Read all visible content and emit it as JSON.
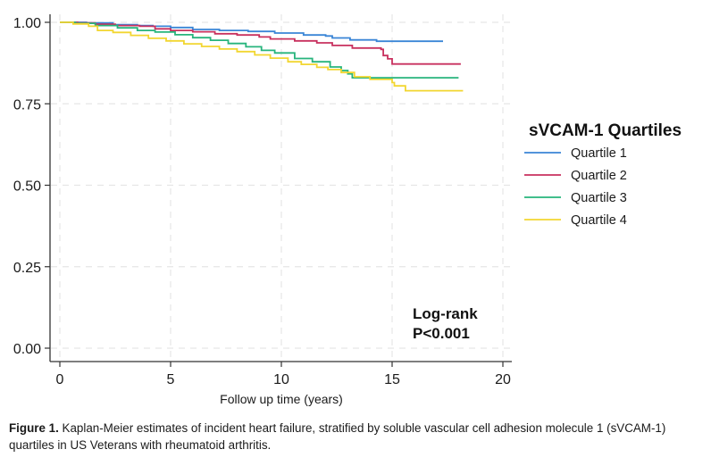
{
  "chart_data": {
    "type": "line",
    "subtype": "kaplan-meier step",
    "title": "",
    "xlabel": "Follow up time (years)",
    "ylabel": "",
    "xlim": [
      0,
      20
    ],
    "ylim": [
      0,
      1
    ],
    "x_ticks": [
      0,
      5,
      10,
      15,
      20
    ],
    "x_tick_labels": [
      "0",
      "5",
      "10",
      "15",
      "20"
    ],
    "y_ticks": [
      0,
      0.25,
      0.5,
      0.75,
      1.0
    ],
    "y_tick_labels": [
      "0.00",
      "0.25",
      "0.50",
      "0.75",
      "1.00"
    ],
    "grid": true,
    "legend": {
      "title": "sVCAM-1 Quartiles",
      "placement": "right"
    },
    "annotation": [
      "Log-rank",
      "P<0.001"
    ],
    "series": [
      {
        "name": "Quartile 1",
        "color": "#3a85d6",
        "points": [
          [
            0,
            1.0
          ],
          [
            1.2,
            0.998
          ],
          [
            2.4,
            0.993
          ],
          [
            3.5,
            0.99
          ],
          [
            4.2,
            0.988
          ],
          [
            5.0,
            0.984
          ],
          [
            6.0,
            0.978
          ],
          [
            7.2,
            0.975
          ],
          [
            8.5,
            0.972
          ],
          [
            9.7,
            0.967
          ],
          [
            11.0,
            0.961
          ],
          [
            12.0,
            0.958
          ],
          [
            12.3,
            0.952
          ],
          [
            13.1,
            0.946
          ],
          [
            14.3,
            0.942
          ],
          [
            17.3,
            0.942
          ]
        ]
      },
      {
        "name": "Quartile 2",
        "color": "#c8305e",
        "points": [
          [
            0,
            1.0
          ],
          [
            0.8,
            0.998
          ],
          [
            1.6,
            0.994
          ],
          [
            2.5,
            0.99
          ],
          [
            3.6,
            0.988
          ],
          [
            4.3,
            0.98
          ],
          [
            5.0,
            0.975
          ],
          [
            6.0,
            0.971
          ],
          [
            7.0,
            0.965
          ],
          [
            8.0,
            0.961
          ],
          [
            9.0,
            0.955
          ],
          [
            9.5,
            0.949
          ],
          [
            10.6,
            0.943
          ],
          [
            11.6,
            0.937
          ],
          [
            12.3,
            0.929
          ],
          [
            13.2,
            0.921
          ],
          [
            14.5,
            0.917
          ],
          [
            14.6,
            0.898
          ],
          [
            14.8,
            0.888
          ],
          [
            15.0,
            0.872
          ],
          [
            18.1,
            0.872
          ]
        ]
      },
      {
        "name": "Quartile 3",
        "color": "#27b47c",
        "points": [
          [
            0,
            1.0
          ],
          [
            0.7,
            0.997
          ],
          [
            1.6,
            0.99
          ],
          [
            2.6,
            0.983
          ],
          [
            3.5,
            0.975
          ],
          [
            4.3,
            0.97
          ],
          [
            5.2,
            0.962
          ],
          [
            6.0,
            0.953
          ],
          [
            6.8,
            0.945
          ],
          [
            7.6,
            0.935
          ],
          [
            8.4,
            0.925
          ],
          [
            9.1,
            0.914
          ],
          [
            9.7,
            0.906
          ],
          [
            10.6,
            0.889
          ],
          [
            11.4,
            0.879
          ],
          [
            12.2,
            0.863
          ],
          [
            12.7,
            0.852
          ],
          [
            13.0,
            0.842
          ],
          [
            13.2,
            0.83
          ],
          [
            18.0,
            0.83
          ]
        ]
      },
      {
        "name": "Quartile 4",
        "color": "#f2d630",
        "points": [
          [
            0,
            1.0
          ],
          [
            0.6,
            0.995
          ],
          [
            1.3,
            0.988
          ],
          [
            1.7,
            0.975
          ],
          [
            2.4,
            0.969
          ],
          [
            3.2,
            0.96
          ],
          [
            4.0,
            0.951
          ],
          [
            4.8,
            0.943
          ],
          [
            5.6,
            0.934
          ],
          [
            6.4,
            0.926
          ],
          [
            7.2,
            0.918
          ],
          [
            8.0,
            0.91
          ],
          [
            8.8,
            0.9
          ],
          [
            9.5,
            0.89
          ],
          [
            10.3,
            0.879
          ],
          [
            10.9,
            0.871
          ],
          [
            11.6,
            0.862
          ],
          [
            12.1,
            0.855
          ],
          [
            12.7,
            0.846
          ],
          [
            13.3,
            0.833
          ],
          [
            14.0,
            0.825
          ],
          [
            15.0,
            0.815
          ],
          [
            15.1,
            0.805
          ],
          [
            15.6,
            0.79
          ],
          [
            18.2,
            0.79
          ]
        ]
      }
    ]
  },
  "caption": {
    "label": "Figure 1.",
    "text": " Kaplan-Meier estimates of incident heart failure, stratified by soluble vascular cell adhesion molecule 1 (sVCAM-1) quartiles in US Veterans with rheumatoid arthritis."
  }
}
